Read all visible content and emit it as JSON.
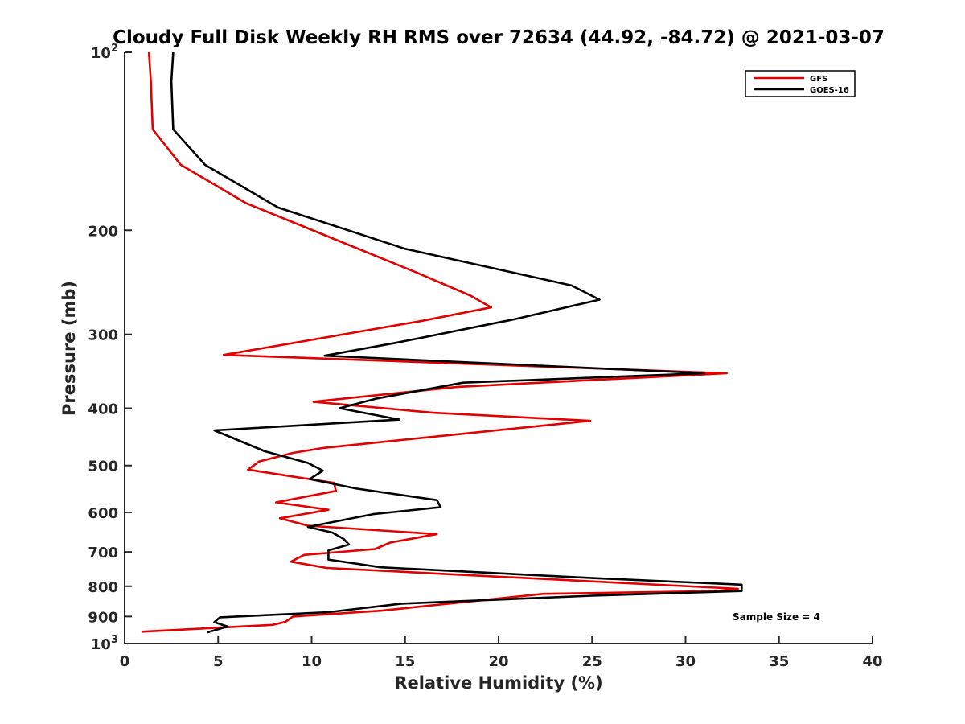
{
  "chart_data": {
    "type": "line",
    "title": "Cloudy Full Disk Weekly RH RMS over 72634 (44.92, -84.72) @ 2021-03-07",
    "xlabel": "Relative Humidity (%)",
    "ylabel": "Pressure (mb)",
    "xlim": [
      0,
      40
    ],
    "ylim": [
      100,
      1000
    ],
    "y_scale": "log",
    "y_reversed": true,
    "grid": false,
    "legend_position": "top-right",
    "x_ticks": [
      "0",
      "5",
      "10",
      "15",
      "20",
      "25",
      "30",
      "35",
      "40"
    ],
    "y_ticks": [
      {
        "value": 100,
        "base": "10",
        "exp": "2"
      },
      {
        "value": 200,
        "label": "200"
      },
      {
        "value": 300,
        "label": "300"
      },
      {
        "value": 400,
        "label": "400"
      },
      {
        "value": 500,
        "label": "500"
      },
      {
        "value": 600,
        "label": "600"
      },
      {
        "value": 700,
        "label": "700"
      },
      {
        "value": 800,
        "label": "800"
      },
      {
        "value": 900,
        "label": "900"
      },
      {
        "value": 1000,
        "base": "10",
        "exp": "3"
      }
    ],
    "annotation": "Sample Size = 4",
    "series": [
      {
        "name": "GFS",
        "color": "#e00000",
        "points": [
          [
            1.3,
            100
          ],
          [
            1.4,
            112
          ],
          [
            1.5,
            135
          ],
          [
            3.0,
            155
          ],
          [
            6.5,
            180
          ],
          [
            15.5,
            235
          ],
          [
            18.5,
            258
          ],
          [
            19.6,
            270
          ],
          [
            15.8,
            285
          ],
          [
            5.3,
            325
          ],
          [
            32.2,
            349
          ],
          [
            17.8,
            368
          ],
          [
            10.1,
            390
          ],
          [
            16.5,
            407
          ],
          [
            24.9,
            420
          ],
          [
            10.6,
            467
          ],
          [
            9.0,
            476
          ],
          [
            7.2,
            492
          ],
          [
            6.6,
            508
          ],
          [
            11.2,
            535
          ],
          [
            11.3,
            552
          ],
          [
            8.1,
            577
          ],
          [
            10.9,
            594
          ],
          [
            8.3,
            614
          ],
          [
            9.8,
            632
          ],
          [
            16.7,
            653
          ],
          [
            14.2,
            675
          ],
          [
            13.4,
            692
          ],
          [
            9.6,
            708
          ],
          [
            8.9,
            727
          ],
          [
            10.8,
            745
          ],
          [
            32.8,
            808
          ],
          [
            31.8,
            815
          ],
          [
            22.4,
            824
          ],
          [
            13.7,
            880
          ],
          [
            9.0,
            900
          ],
          [
            8.6,
            919
          ],
          [
            7.9,
            930
          ],
          [
            0.9,
            955
          ]
        ]
      },
      {
        "name": "GOES-16",
        "color": "#000000",
        "points": [
          [
            2.6,
            100
          ],
          [
            2.5,
            112
          ],
          [
            2.6,
            135
          ],
          [
            4.3,
            155
          ],
          [
            8.2,
            183
          ],
          [
            15.0,
            215
          ],
          [
            23.9,
            248
          ],
          [
            25.4,
            262
          ],
          [
            20.8,
            283
          ],
          [
            14.5,
            310
          ],
          [
            10.7,
            326
          ],
          [
            31.0,
            349
          ],
          [
            18.1,
            362
          ],
          [
            13.5,
            385
          ],
          [
            11.5,
            400
          ],
          [
            14.7,
            418
          ],
          [
            4.8,
            436
          ],
          [
            7.5,
            473
          ],
          [
            9.8,
            495
          ],
          [
            10.6,
            510
          ],
          [
            9.9,
            527
          ],
          [
            12.4,
            547
          ],
          [
            16.7,
            572
          ],
          [
            16.9,
            588
          ],
          [
            13.3,
            604
          ],
          [
            9.8,
            635
          ],
          [
            11.1,
            649
          ],
          [
            11.7,
            665
          ],
          [
            12.0,
            680
          ],
          [
            10.9,
            696
          ],
          [
            10.9,
            721
          ],
          [
            13.7,
            743
          ],
          [
            25.0,
            775
          ],
          [
            33.0,
            795
          ],
          [
            33.0,
            815
          ],
          [
            25.0,
            830
          ],
          [
            14.8,
            856
          ],
          [
            10.9,
            885
          ],
          [
            5.1,
            903
          ],
          [
            4.8,
            920
          ],
          [
            5.5,
            936
          ],
          [
            4.4,
            958
          ]
        ]
      }
    ]
  }
}
